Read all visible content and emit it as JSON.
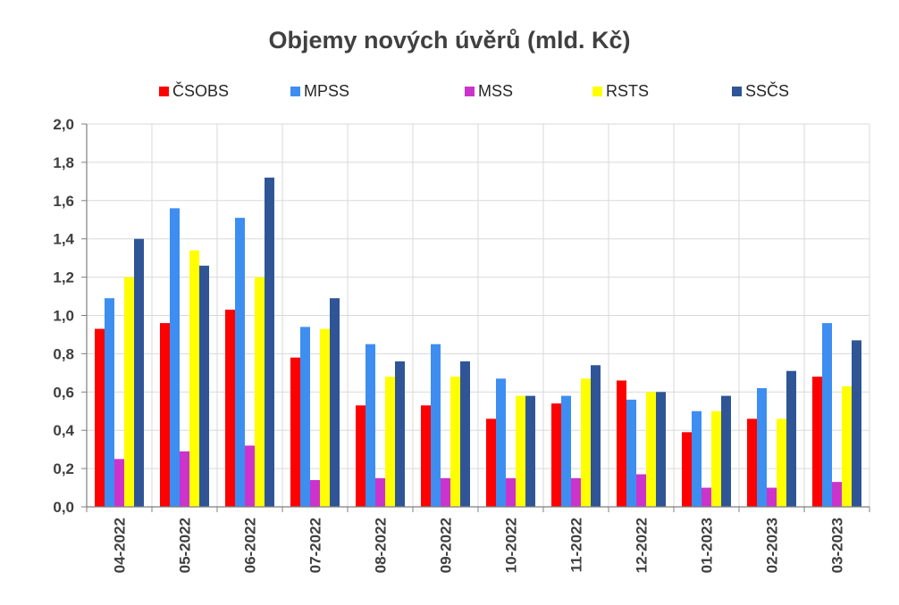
{
  "chart_data": {
    "type": "bar",
    "title": "Objemy nových úvěrů (mld. Kč)",
    "categories": [
      "04-2022",
      "05-2022",
      "06-2022",
      "07-2022",
      "08-2022",
      "09-2022",
      "10-2022",
      "11-2022",
      "12-2022",
      "01-2023",
      "02-2023",
      "03-2023"
    ],
    "series": [
      {
        "name": "ČSOBS",
        "color": "#ff0000",
        "values": [
          0.93,
          0.96,
          1.03,
          0.78,
          0.53,
          0.53,
          0.46,
          0.54,
          0.66,
          0.39,
          0.46,
          0.68
        ]
      },
      {
        "name": "MPSS",
        "color": "#3d8ef0",
        "values": [
          1.09,
          1.56,
          1.51,
          0.94,
          0.85,
          0.85,
          0.67,
          0.58,
          0.56,
          0.5,
          0.62,
          0.96
        ]
      },
      {
        "name": "MSS",
        "color": "#cc33cc",
        "values": [
          0.25,
          0.29,
          0.32,
          0.14,
          0.15,
          0.15,
          0.15,
          0.15,
          0.17,
          0.1,
          0.1,
          0.13
        ]
      },
      {
        "name": "RSTS",
        "color": "#ffff00",
        "values": [
          1.2,
          1.34,
          1.2,
          0.93,
          0.68,
          0.68,
          0.58,
          0.67,
          0.6,
          0.5,
          0.46,
          0.63
        ]
      },
      {
        "name": "SSČS",
        "color": "#2f5597",
        "values": [
          1.4,
          1.26,
          1.72,
          1.09,
          0.76,
          0.76,
          0.58,
          0.74,
          0.6,
          0.58,
          0.71,
          0.87
        ]
      }
    ],
    "ylim": [
      0,
      2.0
    ],
    "yticks": [
      "0,0",
      "0,2",
      "0,4",
      "0,6",
      "0,8",
      "1,0",
      "1,2",
      "1,4",
      "1,6",
      "1,8",
      "2,0"
    ],
    "grid": true,
    "legend_position": "top"
  }
}
